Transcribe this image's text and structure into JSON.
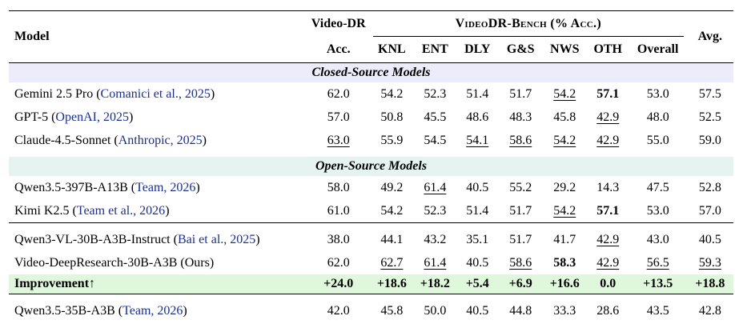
{
  "header": {
    "model": "Model",
    "video_dr_top": "Video-DR",
    "video_dr_bottom": "Acc.",
    "bench_title": "VideoDR-Bench (% Acc.)",
    "avg": "Avg.",
    "cols": [
      "KNL",
      "ENT",
      "DLY",
      "G&S",
      "NWS",
      "OTH",
      "Overall"
    ]
  },
  "sections": {
    "closed": "Closed-Source Models",
    "open": "Open-Source Models"
  },
  "rows": [
    {
      "name": "Gemini 2.5 Pro (",
      "cite": "Comanici et al., 2025",
      "close": ")",
      "vals": [
        "62.0",
        "54.2",
        "52.3",
        "51.4",
        "51.7",
        "54.2",
        "57.1",
        "53.0",
        "57.5"
      ]
    },
    {
      "name": "GPT-5 (",
      "cite": "OpenAI, 2025",
      "close": ")",
      "vals": [
        "57.0",
        "50.8",
        "45.5",
        "48.6",
        "48.3",
        "45.8",
        "42.9",
        "48.0",
        "52.5"
      ]
    },
    {
      "name": "Claude-4.5-Sonnet (",
      "cite": "Anthropic, 2025",
      "close": ")",
      "vals": [
        "63.0",
        "55.9",
        "54.5",
        "54.1",
        "58.6",
        "54.2",
        "42.9",
        "55.0",
        "59.0"
      ]
    },
    {
      "name": "Qwen3.5-397B-A13B (",
      "cite": "Team, 2026",
      "close": ")",
      "vals": [
        "58.0",
        "49.2",
        "61.4",
        "40.5",
        "55.2",
        "29.2",
        "14.3",
        "47.5",
        "52.8"
      ]
    },
    {
      "name": "Kimi K2.5 (",
      "cite": "Team et al., 2026",
      "close": ")",
      "vals": [
        "61.0",
        "54.2",
        "52.3",
        "51.4",
        "51.7",
        "54.2",
        "57.1",
        "53.0",
        "57.0"
      ]
    },
    {
      "name": "Qwen3-VL-30B-A3B-Instruct (",
      "cite": "Bai et al., 2025",
      "close": ")",
      "vals": [
        "38.0",
        "44.1",
        "43.2",
        "35.1",
        "51.7",
        "41.7",
        "42.9",
        "43.0",
        "40.5"
      ]
    },
    {
      "name": "Video-DeepResearch-30B-A3B (Ours)",
      "cite": "",
      "close": "",
      "vals": [
        "62.0",
        "62.7",
        "61.4",
        "40.5",
        "58.6",
        "58.3",
        "42.9",
        "56.5",
        "59.3"
      ]
    },
    {
      "name": "Qwen3.5-35B-A3B (",
      "cite": "Team, 2026",
      "close": ")",
      "vals": [
        "42.0",
        "45.8",
        "50.0",
        "40.5",
        "44.8",
        "33.3",
        "28.6",
        "43.5",
        "42.8"
      ]
    }
  ],
  "improvement": {
    "label": "Improvement↑",
    "vals": [
      "+24.0",
      "+18.6",
      "+18.2",
      "+5.4",
      "+6.9",
      "+16.6",
      "0.0",
      "+13.5",
      "+18.8"
    ]
  }
}
